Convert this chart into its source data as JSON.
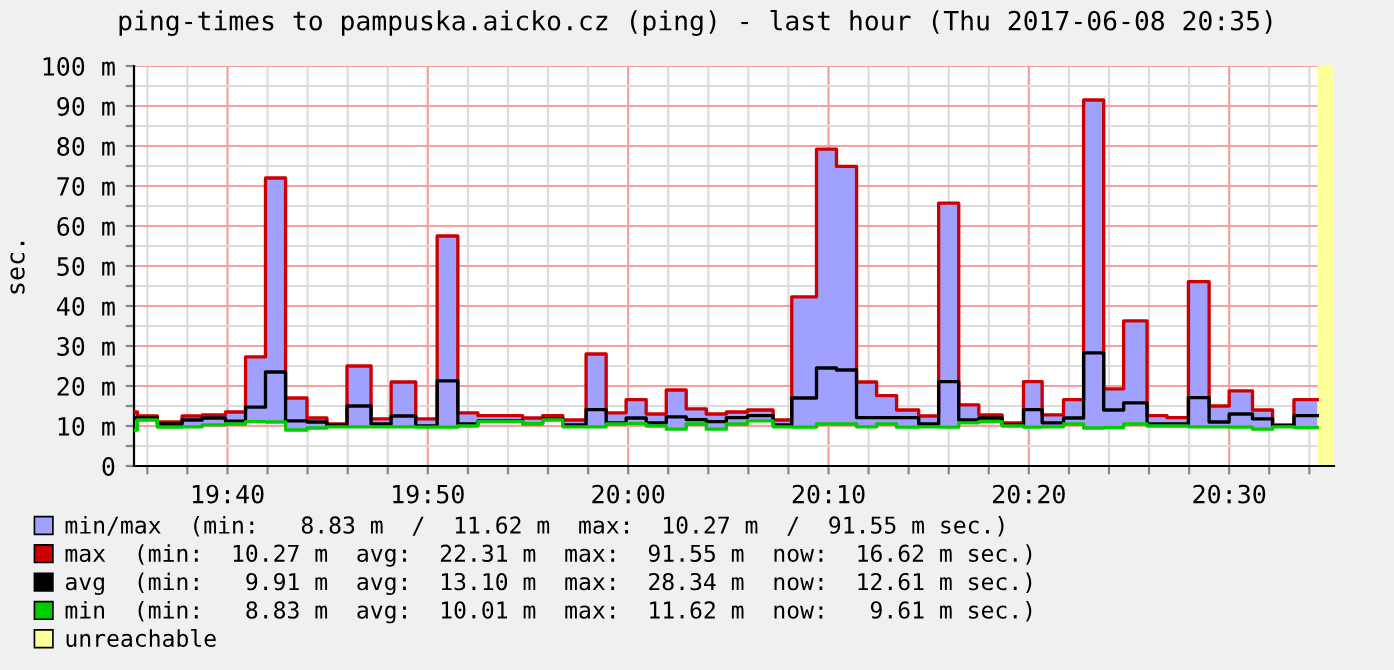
{
  "chart_data": {
    "type": "step",
    "title": "ping-times to pampuska.aicko.cz (ping) - last hour (Thu 2017-06-08 20:35)",
    "ylabel": "sec.",
    "x": [
      19.5889,
      19.5917,
      19.6083,
      19.6289,
      19.6456,
      19.665,
      19.6817,
      19.6983,
      19.715,
      19.7328,
      19.7494,
      19.7661,
      19.7861,
      19.8028,
      19.8233,
      19.8411,
      19.8583,
      19.875,
      19.8928,
      19.9122,
      19.9289,
      19.9456,
      19.965,
      19.9817,
      19.9983,
      20.015,
      20.0317,
      20.0483,
      20.065,
      20.0817,
      20.0994,
      20.1206,
      20.1361,
      20.1567,
      20.1733,
      20.19,
      20.2067,
      20.2233,
      20.2417,
      20.2583,
      20.275,
      20.2917,
      20.3111,
      20.3289,
      20.3444,
      20.3622,
      20.3789,
      20.3956,
      20.4122,
      20.4317,
      20.4483,
      20.4661,
      20.4833,
      20.5,
      20.5194,
      20.5361,
      20.5539,
      20.5733
    ],
    "series": [
      {
        "name": "min/max  (min:   8.83 m  /  11.62 m  max:  10.27 m  /  91.55 m sec.)",
        "type": "area",
        "color": "#a0a0ff",
        "values": [
          13.5,
          12.5,
          11,
          12.5,
          12.8,
          13.5,
          27.3,
          72,
          17,
          12,
          10.5,
          25,
          11.8,
          21,
          11.8,
          57.5,
          13.3,
          12.6,
          12.6,
          12,
          12.6,
          11.5,
          28,
          13.3,
          16.6,
          13,
          19,
          14.3,
          13,
          13.5,
          14,
          11.5,
          42.3,
          79.2,
          74.9,
          21,
          17.6,
          14,
          12.5,
          65.7,
          15.3,
          12.8,
          10.8,
          21.1,
          12.8,
          16.6,
          91.5,
          19.3,
          36.3,
          12.6,
          12.1,
          46.1,
          15,
          18.8,
          14,
          10.3,
          16.6,
          16.6
        ]
      },
      {
        "name": "max  (min:  10.27 m  avg:  22.31 m  max:  91.55 m  now:  16.62 m sec.)",
        "color": "#cc0000",
        "values": [
          13.5,
          12.5,
          11,
          12.5,
          12.8,
          13.5,
          27.3,
          72,
          17,
          12,
          10.5,
          25,
          11.8,
          21,
          11.8,
          57.5,
          13.3,
          12.6,
          12.6,
          12,
          12.6,
          11.5,
          28,
          13.3,
          16.6,
          13,
          19,
          14.3,
          13,
          13.5,
          14,
          11.5,
          42.3,
          79.2,
          74.9,
          21,
          17.6,
          14,
          12.5,
          65.7,
          15.3,
          12.8,
          10.8,
          21.1,
          12.8,
          16.6,
          91.5,
          19.3,
          36.3,
          12.6,
          12.1,
          46.1,
          15,
          18.8,
          14,
          10.3,
          16.6,
          16.6
        ]
      },
      {
        "name": "avg  (min:   9.91 m  avg:  13.10 m  max:  28.34 m  now:  12.61 m sec.)",
        "color": "#000000",
        "values": [
          12,
          12,
          10.5,
          11.5,
          12,
          11.2,
          14.7,
          23.5,
          11.3,
          11,
          10.2,
          15,
          10.5,
          12.5,
          10,
          21.3,
          10.5,
          11.3,
          11.3,
          10.6,
          11.8,
          10.3,
          14.1,
          10.8,
          12,
          10.8,
          12.3,
          11.6,
          11.1,
          12.1,
          12.6,
          10.3,
          17,
          24.5,
          24,
          12.1,
          12.1,
          12.1,
          10.5,
          21.1,
          11.5,
          12,
          10.3,
          14.1,
          10.8,
          12,
          28.3,
          14,
          15.8,
          10.5,
          10.5,
          17.1,
          11,
          13,
          11.8,
          10.1,
          12.6,
          12.6
        ]
      },
      {
        "name": "min  (min:   8.83 m  avg:  10.01 m  max:  11.62 m  now:   9.61 m sec.)",
        "color": "#00cc00",
        "values": [
          9,
          11.5,
          9.7,
          9.8,
          10.3,
          10.5,
          11.1,
          11,
          9,
          9.5,
          9.8,
          9.8,
          9.8,
          9.8,
          9.7,
          9.7,
          10,
          11.1,
          11.1,
          10.6,
          11.5,
          9.8,
          9.8,
          10.5,
          10.6,
          10,
          9.2,
          10.5,
          9.2,
          10.5,
          11.3,
          9.8,
          9.7,
          10.5,
          10.5,
          9.8,
          10.5,
          9.7,
          9.8,
          9.7,
          10.8,
          11.1,
          10,
          9.7,
          9.8,
          10.5,
          9.5,
          9.6,
          10.5,
          10,
          10,
          9.8,
          9.8,
          9.7,
          9.2,
          9.8,
          9.6,
          9.6
        ]
      }
    ],
    "bands": [
      {
        "axis": "x",
        "from": 20.5733,
        "to": 20.5872,
        "label": "unreachable",
        "color": "#ffff99"
      }
    ],
    "xlim": [
      19.5889,
      20.5872
    ],
    "ylim": [
      0,
      100
    ],
    "xticks": [
      {
        "value": 19.6,
        "label": null
      },
      {
        "value": 19.6333,
        "label": null
      },
      {
        "value": 19.6667,
        "label": "19:40"
      },
      {
        "value": 19.7,
        "label": null
      },
      {
        "value": 19.7333,
        "label": null
      },
      {
        "value": 19.7667,
        "label": null
      },
      {
        "value": 19.8,
        "label": null
      },
      {
        "value": 19.8333,
        "label": "19:50"
      },
      {
        "value": 19.8667,
        "label": null
      },
      {
        "value": 19.9,
        "label": null
      },
      {
        "value": 19.9333,
        "label": null
      },
      {
        "value": 19.9667,
        "label": null
      },
      {
        "value": 20.0,
        "label": "20:00"
      },
      {
        "value": 20.0333,
        "label": null
      },
      {
        "value": 20.0667,
        "label": null
      },
      {
        "value": 20.1,
        "label": null
      },
      {
        "value": 20.1333,
        "label": null
      },
      {
        "value": 20.1667,
        "label": "20:10"
      },
      {
        "value": 20.2,
        "label": null
      },
      {
        "value": 20.2333,
        "label": null
      },
      {
        "value": 20.2667,
        "label": null
      },
      {
        "value": 20.3,
        "label": null
      },
      {
        "value": 20.3333,
        "label": "20:20"
      },
      {
        "value": 20.3667,
        "label": null
      },
      {
        "value": 20.4,
        "label": null
      },
      {
        "value": 20.4333,
        "label": null
      },
      {
        "value": 20.4667,
        "label": null
      },
      {
        "value": 20.5,
        "label": "20:30"
      },
      {
        "value": 20.5333,
        "label": null
      },
      {
        "value": 20.5667,
        "label": null
      }
    ],
    "yticks": [
      0,
      {
        "value": 5,
        "label": null
      },
      {
        "value": 10,
        "label": "10 m"
      },
      {
        "value": 15,
        "label": null
      },
      {
        "value": 20,
        "label": "20 m"
      },
      {
        "value": 25,
        "label": null
      },
      {
        "value": 30,
        "label": "30 m"
      },
      {
        "value": 35,
        "label": null
      },
      {
        "value": 40,
        "label": "40 m"
      },
      {
        "value": 45,
        "label": null
      },
      {
        "value": 50,
        "label": "50 m"
      },
      {
        "value": 55,
        "label": null
      },
      {
        "value": 60,
        "label": "60 m"
      },
      {
        "value": 65,
        "label": null
      },
      {
        "value": 70,
        "label": "70 m"
      },
      {
        "value": 75,
        "label": null
      },
      {
        "value": 80,
        "label": "80 m"
      },
      {
        "value": 85,
        "label": null
      },
      {
        "value": 90,
        "label": "90 m"
      },
      {
        "value": 95,
        "label": null
      },
      {
        "value": 100,
        "label": "100 m"
      }
    ],
    "grid": true,
    "legend": "bottom"
  }
}
